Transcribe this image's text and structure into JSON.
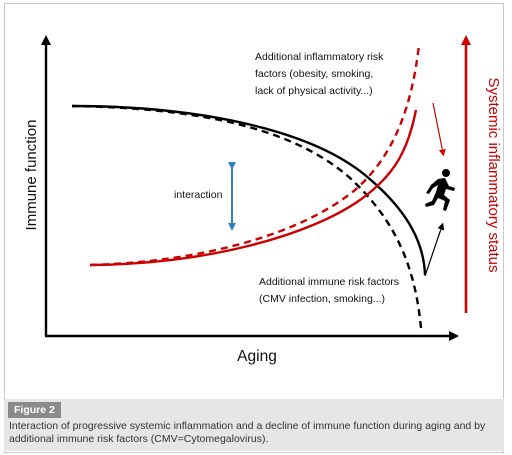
{
  "diagram": {
    "y_axis_label": "Immune function",
    "x_axis_label": "Aging",
    "right_axis_label": "Systemic inflammatory status",
    "interaction_label": "interaction",
    "inflammatory_annotation": [
      "Additional inflammatory risk",
      "factors (obesity, smoking,",
      "lack of physical activity...)"
    ],
    "immune_annotation": [
      "Additional immune risk factors",
      "(CMV infection, smoking...)"
    ],
    "colors": {
      "immune_curve": "#000000",
      "inflammation_curve": "#cc0000",
      "interaction_arrow": "#2e86c1",
      "caption_background": "#e6e6e6",
      "figure_label_background": "#8a8a8a"
    },
    "icons": [
      "runner-icon"
    ]
  },
  "caption": {
    "figure_label": "Figure 2",
    "text": "Interaction of progressive systemic inflammation and a decline of immune function during aging and by additional immune risk factors (CMV=Cytomegalovirus)."
  }
}
